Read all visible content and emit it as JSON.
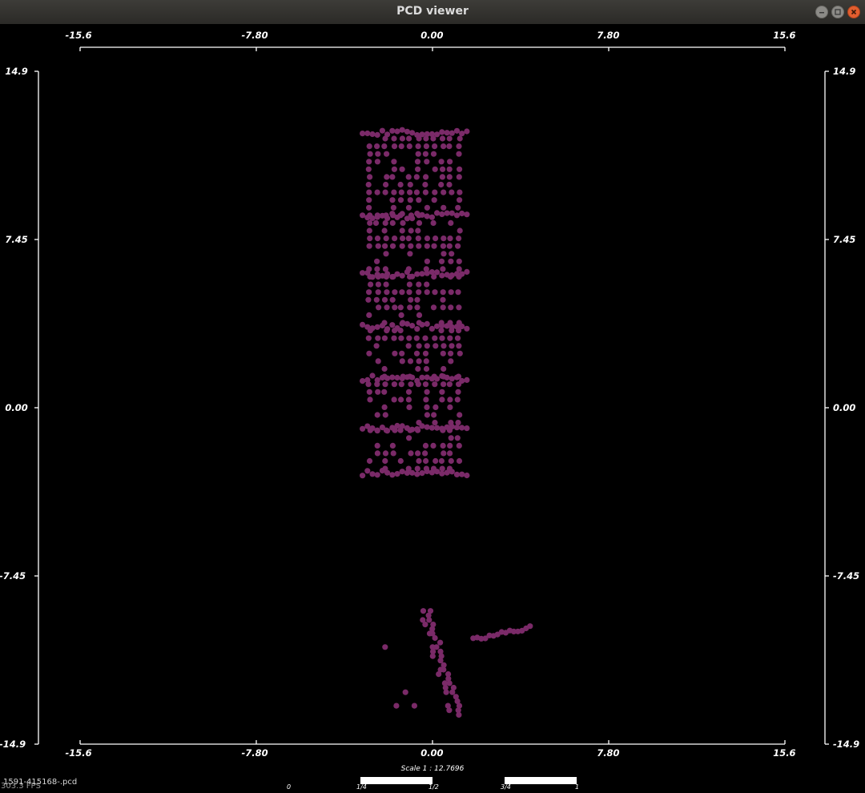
{
  "window": {
    "title": "PCD viewer",
    "buttons": [
      {
        "name": "minimize-button",
        "icon": "minimize-icon"
      },
      {
        "name": "maximize-button",
        "icon": "maximize-icon"
      },
      {
        "name": "close-button",
        "icon": "close-icon"
      }
    ]
  },
  "axes": {
    "x_ticks": [
      "-15.6",
      "-7.80",
      "0.00",
      "7.80",
      "15.6"
    ],
    "y_ticks": [
      "14.9",
      "7.45",
      "0.00",
      "-7.45",
      "-14.9"
    ],
    "x_range": [
      -15.6,
      15.6
    ],
    "y_range": [
      -14.9,
      14.9
    ]
  },
  "scale": {
    "label": "Scale 1 : 12.7696",
    "bar_labels": [
      "0",
      "1/4",
      "1/2",
      "3/4",
      "1"
    ]
  },
  "status": {
    "filename": "1591-415168-.pcd",
    "fps": "303.3 FPS"
  },
  "colors": {
    "background": "#000000",
    "points": "#7a2a68",
    "axis": "#ffffff"
  },
  "chart_data": {
    "type": "scatter",
    "title": "",
    "xlabel": "",
    "ylabel": "",
    "xlim": [
      -15.6,
      15.6
    ],
    "ylim": [
      -14.9,
      14.9
    ],
    "grid": false,
    "legend": "none",
    "clusters": [
      {
        "kind": "main-block",
        "x_range": [
          -3.2,
          1.6
        ],
        "y_range": [
          -3.1,
          13.2
        ]
      },
      {
        "kind": "lower-column",
        "x_range": [
          -0.2,
          1.2
        ],
        "y_range": [
          -13.6,
          -9.0
        ]
      },
      {
        "kind": "lower-right-streak",
        "x_range": [
          1.8,
          4.4
        ],
        "y_range": [
          -10.3,
          -9.7
        ]
      }
    ]
  }
}
